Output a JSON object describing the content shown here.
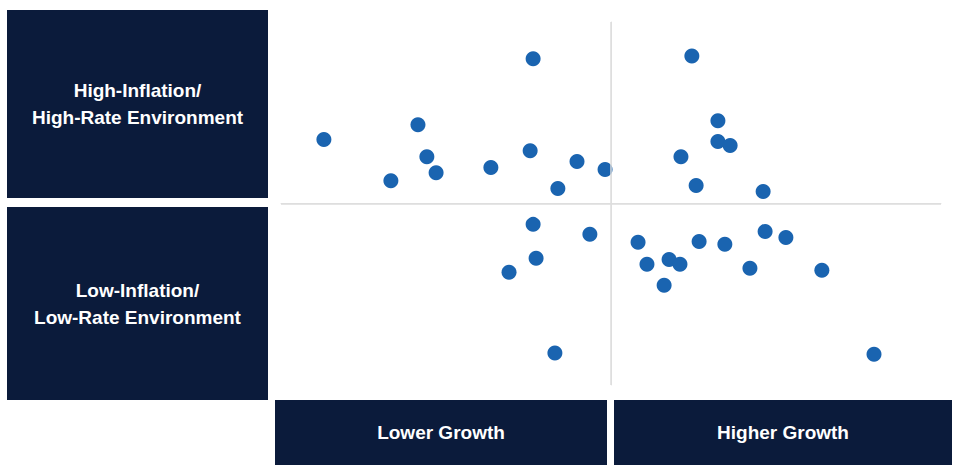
{
  "chart_data": {
    "type": "scatter",
    "row_labels": [
      "High-Inflation/\nHigh-Rate Environment",
      "Low-Inflation/\nLow-Rate Environment"
    ],
    "column_labels": [
      "Lower Growth",
      "Higher Growth"
    ],
    "x": [
      -87.0,
      -23.6,
      -58.5,
      -55.8,
      -53.0,
      -66.7,
      -36.4,
      -24.5,
      -10.3,
      -16.1,
      -1.8,
      24.5,
      32.4,
      32.4,
      36.1,
      21.2,
      25.8,
      46.1,
      -23.6,
      -6.4,
      -22.7,
      -30.9,
      -17.0,
      8.2,
      26.7,
      34.5,
      46.7,
      53.0,
      10.9,
      17.6,
      20.9,
      16.1,
      42.1,
      63.9,
      79.7
    ],
    "values": [
      35.2,
      79.7,
      43.4,
      25.8,
      17.0,
      12.6,
      19.8,
      29.1,
      23.1,
      8.2,
      18.7,
      81.3,
      45.6,
      34.1,
      31.9,
      25.8,
      9.9,
      6.6,
      -11.5,
      -17.0,
      -30.2,
      -37.9,
      -82.4,
      -21.4,
      -20.9,
      -22.5,
      -15.4,
      -18.7,
      -33.5,
      -30.8,
      -33.5,
      -45.1,
      -35.7,
      -36.8,
      -83.0
    ],
    "color": "#1a64b0",
    "marker": "circle",
    "xlim": [
      -100,
      100
    ],
    "ylim": [
      -100,
      100
    ],
    "xticks": [
      0
    ],
    "yticks": [
      0
    ],
    "grid": true,
    "tick_labels": false
  }
}
